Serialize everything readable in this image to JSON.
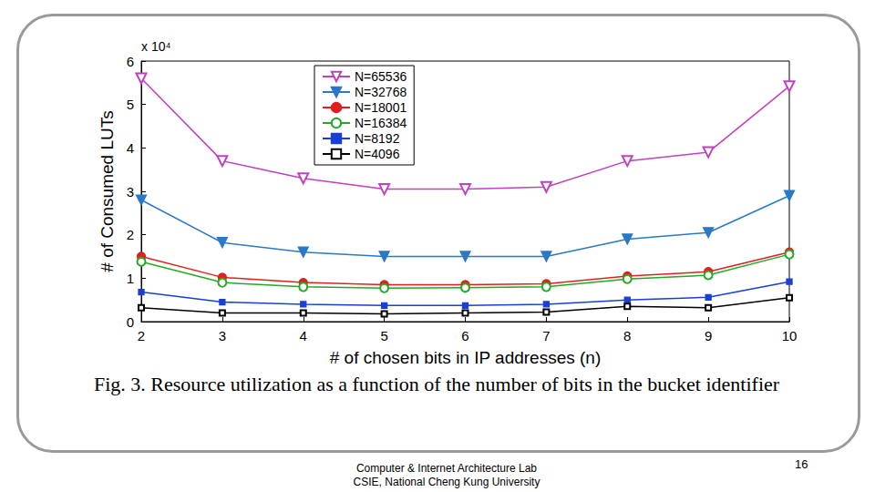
{
  "chart_data": {
    "type": "line",
    "title": "Fig. 3. Resource utilization as a function of the number of bits in the bucket identifier",
    "xlabel": "# of chosen bits in IP addresses (n)",
    "ylabel": "# of Consumed LUTs",
    "annotations": {
      "y_multiplier": "x 10⁴",
      "footer": [
        "Computer & Internet Architecture Lab",
        "CSIE, National Cheng Kung University"
      ],
      "page_number": "16"
    },
    "x": [
      2,
      3,
      4,
      5,
      6,
      7,
      8,
      9,
      10
    ],
    "xlim": [
      2,
      10
    ],
    "xticks": [
      2,
      3,
      4,
      5,
      6,
      7,
      8,
      9,
      10
    ],
    "ylim": [
      0,
      6
    ],
    "yticks": [
      0,
      1,
      2,
      3,
      4,
      5,
      6
    ],
    "grid": false,
    "legend": "top",
    "series": [
      {
        "name": "N=65536",
        "color": "#c040c0",
        "marker": "triangle-down-open",
        "line_style": "solid",
        "values": [
          5.6,
          3.7,
          3.3,
          3.05,
          3.05,
          3.1,
          3.7,
          3.9,
          5.42
        ]
      },
      {
        "name": "N=32768",
        "color": "#2a78c8",
        "marker": "triangle-down",
        "line_style": "solid",
        "values": [
          2.8,
          1.82,
          1.6,
          1.5,
          1.5,
          1.5,
          1.9,
          2.05,
          2.9
        ]
      },
      {
        "name": "N=18001",
        "color": "#e02020",
        "marker": "circle",
        "line_style": "solid",
        "values": [
          1.5,
          1.02,
          0.9,
          0.85,
          0.85,
          0.87,
          1.05,
          1.15,
          1.6
        ]
      },
      {
        "name": "N=16384",
        "color": "#22aa22",
        "marker": "circle-open",
        "line_style": "solid",
        "values": [
          1.38,
          0.9,
          0.8,
          0.77,
          0.78,
          0.8,
          0.98,
          1.07,
          1.55
        ]
      },
      {
        "name": "N=8192",
        "color": "#1a3fd6",
        "marker": "square",
        "line_style": "solid",
        "values": [
          0.68,
          0.45,
          0.4,
          0.37,
          0.37,
          0.4,
          0.5,
          0.56,
          0.92
        ]
      },
      {
        "name": "N=4096",
        "color": "#000000",
        "marker": "square-open",
        "line_style": "solid",
        "values": [
          0.32,
          0.2,
          0.2,
          0.18,
          0.2,
          0.22,
          0.35,
          0.32,
          0.55
        ]
      }
    ]
  }
}
